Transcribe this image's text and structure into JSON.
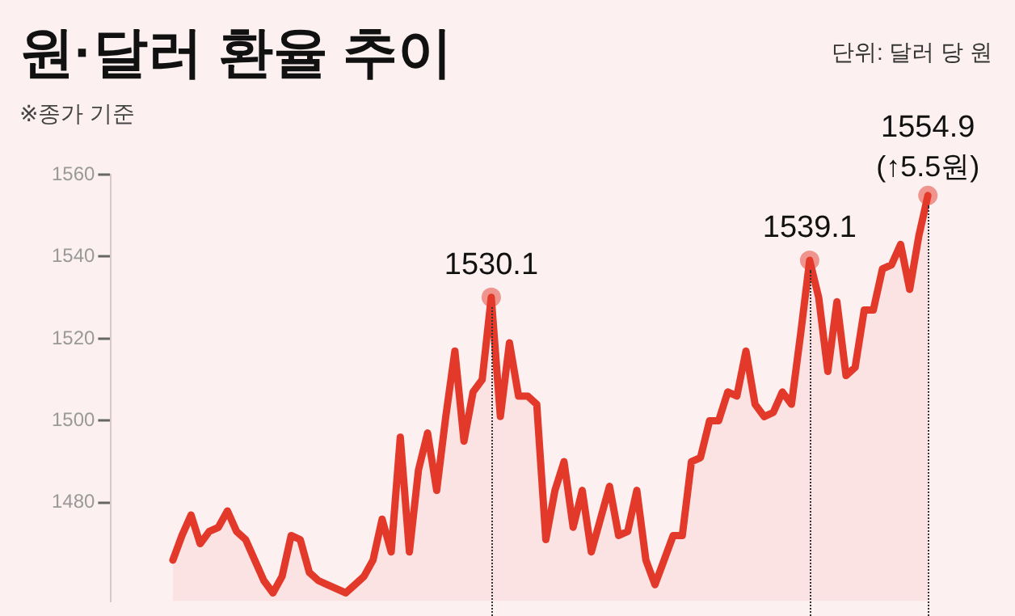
{
  "chart_data": {
    "type": "area",
    "title": "원·달러 환율 추이",
    "subtitle": "※종가 기준",
    "annotations": [
      "단위: 달러 당 원",
      "(↑5.5원)"
    ],
    "categories": [
      null,
      null,
      null,
      null,
      null,
      null,
      null,
      null,
      null,
      null,
      null,
      null,
      null,
      null,
      null,
      null,
      null,
      null,
      null,
      null,
      null,
      null,
      null,
      null,
      null,
      null,
      null,
      null,
      null,
      null,
      null,
      null,
      null,
      null,
      null,
      null,
      null,
      null,
      null,
      null,
      null,
      null,
      null,
      null,
      null,
      null,
      null,
      null,
      null,
      null,
      null,
      null,
      null,
      null,
      null,
      null,
      null,
      null,
      null,
      null,
      null,
      null,
      null,
      null,
      null,
      null,
      null,
      null,
      null,
      null,
      null,
      null,
      null,
      null,
      null,
      null,
      null,
      null,
      null,
      null,
      null,
      null,
      null,
      null
    ],
    "series": [
      {
        "color": "#e2392a",
        "values": [
          1466,
          1472,
          1477,
          1470,
          1473,
          1474,
          1478,
          1473,
          1471,
          1466,
          1461,
          1458,
          1462,
          1472,
          1471,
          1463,
          1461,
          1460,
          1459,
          1458,
          1460,
          1462,
          1466,
          1476,
          1468,
          1496,
          1468,
          1488,
          1497,
          1483,
          1501,
          1517,
          1495,
          1507,
          1510,
          1530.1,
          1501,
          1519,
          1506,
          1506,
          1504,
          1471,
          1483,
          1490,
          1474,
          1483,
          1468,
          1476,
          1484,
          1472,
          1473,
          1483,
          1466,
          1460,
          1466,
          1472,
          1472,
          1490,
          1491,
          1500,
          1500,
          1507,
          1506,
          1517,
          1504,
          1501,
          1502,
          1507,
          1504,
          1521,
          1539.1,
          1530,
          1512,
          1529,
          1511,
          1513,
          1527,
          1527,
          1537,
          1538,
          1543,
          1532,
          1545,
          1554.9
        ],
        "value_labels": [
          null,
          null,
          null,
          null,
          null,
          null,
          null,
          null,
          null,
          null,
          null,
          null,
          null,
          null,
          null,
          null,
          null,
          null,
          null,
          null,
          null,
          null,
          null,
          null,
          null,
          null,
          null,
          null,
          null,
          null,
          null,
          null,
          null,
          null,
          null,
          "1530.1",
          null,
          null,
          null,
          null,
          null,
          null,
          null,
          null,
          null,
          null,
          null,
          null,
          null,
          null,
          null,
          null,
          null,
          null,
          null,
          null,
          null,
          null,
          null,
          null,
          null,
          null,
          null,
          null,
          null,
          null,
          null,
          null,
          null,
          null,
          "1539.1",
          null,
          null,
          null,
          null,
          null,
          null,
          null,
          null,
          null,
          null,
          null,
          null,
          "1554.9"
        ]
      }
    ],
    "ylim": [
      1456,
      1560
    ],
    "yticks": [
      1480,
      1500,
      1520,
      1540,
      1560
    ],
    "grid": false,
    "legend": false,
    "tick_labels": "y"
  }
}
